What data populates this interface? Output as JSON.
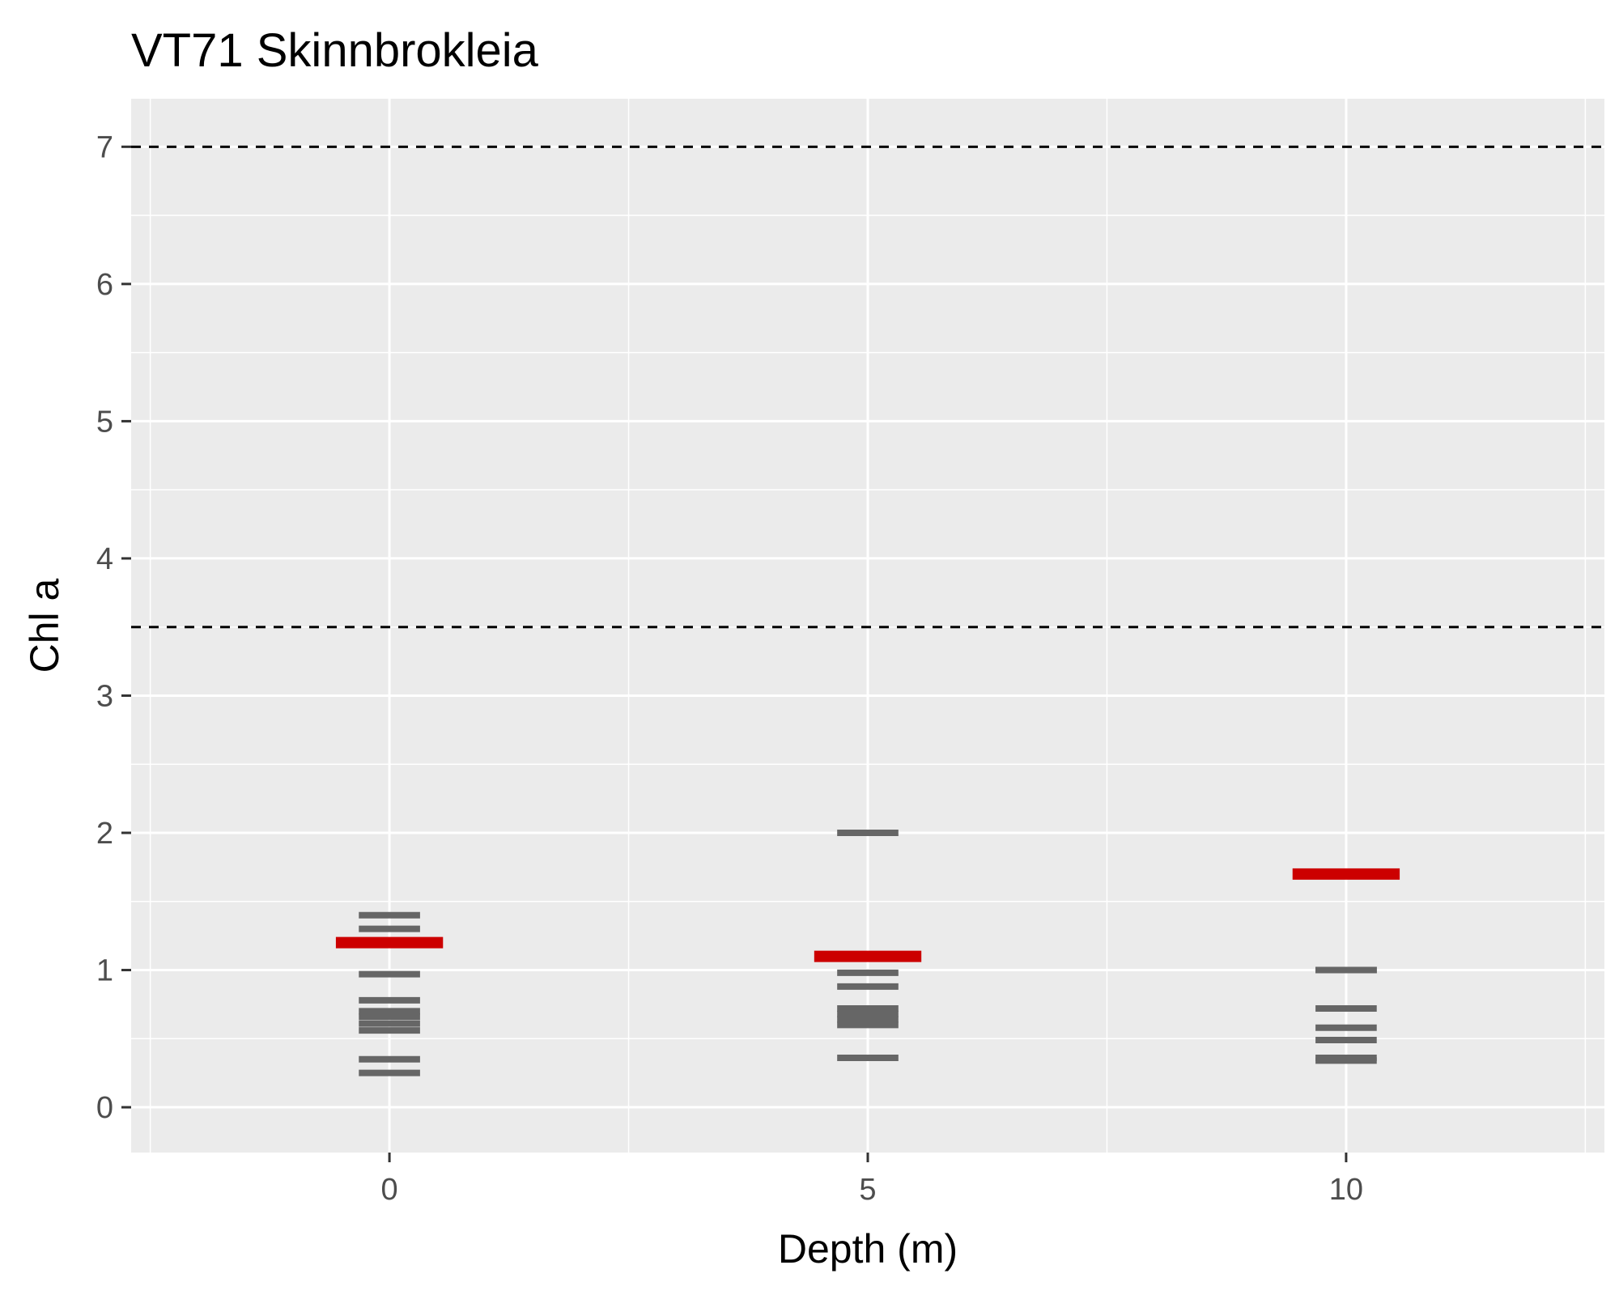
{
  "chart_data": {
    "type": "scatter",
    "title": "VT71 Skinnbrokleia",
    "xlabel": "Depth (m)",
    "ylabel": "Chl a",
    "xlim": [
      -2.7,
      12.7
    ],
    "ylim": [
      -0.33,
      7.35
    ],
    "x_ticks": [
      0,
      5,
      10
    ],
    "x_tick_labels": [
      "0",
      "5",
      "10"
    ],
    "y_ticks": [
      0,
      1,
      2,
      3,
      4,
      5,
      6,
      7
    ],
    "y_tick_labels": [
      "0",
      "1",
      "2",
      "3",
      "4",
      "5",
      "6",
      "7"
    ],
    "grid": true,
    "reference_lines": [
      3.5,
      7
    ],
    "series": [
      {
        "x": [
          0,
          0,
          0,
          0,
          0,
          0,
          0,
          0,
          0,
          0,
          5,
          5,
          5,
          5,
          5,
          5,
          5,
          5,
          10,
          10,
          10,
          10,
          10,
          10,
          10,
          10
        ],
        "y": [
          1.3,
          0.78,
          0.7,
          0.66,
          0.61,
          0.56,
          0.35,
          0.25,
          1.4,
          0.97,
          0.72,
          0.68,
          0.64,
          0.6,
          0.36,
          2.0,
          0.98,
          0.88,
          0.72,
          0.58,
          0.49,
          0.36,
          0.34,
          1.0,
          1.0,
          1.0
        ],
        "color": "#666666"
      },
      {
        "x": [
          0,
          5,
          10
        ],
        "y": [
          1.2,
          1.1,
          1.7
        ],
        "color": "#cc0000"
      }
    ]
  }
}
